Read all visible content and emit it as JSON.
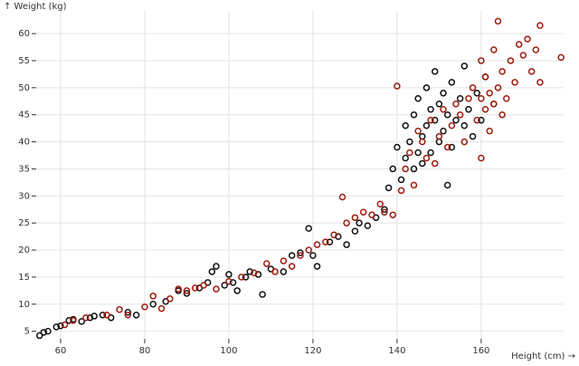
{
  "chart_data": {
    "type": "scatter",
    "x_label": "Height (cm) →",
    "y_label": "↑ Weight (kg)",
    "xlim": [
      54.2,
      179.6
    ],
    "ylim": [
      3.6,
      64.2
    ],
    "xticks": [
      60,
      80,
      100,
      120,
      140,
      160
    ],
    "yticks": [
      5,
      10,
      15,
      20,
      25,
      30,
      35,
      40,
      45,
      50,
      55,
      60
    ],
    "grid": true,
    "series": [
      {
        "color": "#111111",
        "x": [
          55,
          56,
          57,
          59,
          60,
          62,
          63,
          65,
          67,
          68,
          70,
          72,
          76,
          78,
          82,
          85,
          88,
          90,
          93,
          95,
          96,
          97,
          99,
          100,
          101,
          102,
          104,
          105,
          107,
          108,
          110,
          113,
          115,
          117,
          119,
          120,
          121,
          124,
          126,
          128,
          130,
          131,
          133,
          135,
          137,
          138,
          139,
          140,
          141,
          142,
          142,
          143,
          144,
          144,
          145,
          145,
          146,
          146,
          147,
          147,
          148,
          148,
          149,
          149,
          150,
          150,
          151,
          151,
          152,
          152,
          153,
          153,
          154,
          155,
          156,
          156,
          157,
          158,
          159,
          160,
          161,
          163
        ],
        "values": [
          4.2,
          4.8,
          5,
          5.8,
          6,
          7,
          7.2,
          6.8,
          7.5,
          7.8,
          8,
          7.5,
          8.5,
          8,
          10,
          10.5,
          12.5,
          12,
          13,
          14,
          16,
          17,
          13.5,
          15.5,
          14,
          12.5,
          15,
          16,
          15.5,
          11.8,
          16.5,
          16,
          19,
          19.5,
          24,
          19,
          17,
          21.5,
          22.5,
          21,
          23.5,
          25,
          24.5,
          26,
          27.5,
          31.5,
          35,
          39,
          33,
          37,
          43,
          40,
          35,
          45,
          38,
          48,
          41,
          36,
          43,
          50,
          38,
          46,
          44,
          53,
          40,
          47,
          42,
          49,
          45,
          32,
          39,
          51,
          44,
          48,
          43,
          54,
          46,
          41,
          49,
          44,
          52,
          47
        ]
      },
      {
        "color": "#a01a0e",
        "x": [
          61,
          63,
          66,
          71,
          74,
          76,
          80,
          82,
          84,
          86,
          88,
          90,
          92,
          94,
          97,
          100,
          103,
          106,
          109,
          111,
          113,
          115,
          117,
          119,
          121,
          123,
          125,
          127,
          128,
          130,
          132,
          134,
          136,
          137,
          139,
          140,
          141,
          142,
          143,
          144,
          145,
          146,
          147,
          148,
          149,
          150,
          151,
          152,
          153,
          154,
          155,
          156,
          157,
          158,
          159,
          160,
          160,
          160,
          161,
          161,
          162,
          162,
          163,
          163,
          164,
          164,
          165,
          165,
          166,
          167,
          168,
          169,
          170,
          171,
          172,
          173,
          174,
          174,
          179
        ],
        "values": [
          6.2,
          7,
          7.5,
          8,
          9,
          8,
          9.5,
          11.5,
          9.2,
          11,
          12.8,
          12.5,
          13,
          13.5,
          12.8,
          14.2,
          15,
          15.8,
          17.5,
          16,
          18,
          17,
          19,
          20,
          21,
          21.5,
          22.8,
          29.8,
          25,
          26,
          27,
          26.5,
          28.5,
          27,
          26.5,
          50.3,
          31,
          35,
          38,
          32,
          42,
          40,
          37,
          44,
          36,
          41,
          46,
          39,
          43,
          47,
          45,
          40,
          48,
          50,
          44,
          48,
          37,
          55,
          52,
          46,
          49,
          42,
          47,
          57,
          62.3,
          50,
          53,
          45,
          48,
          55,
          51,
          58,
          56,
          59,
          53,
          57,
          61.5,
          51,
          55.6
        ]
      }
    ]
  }
}
